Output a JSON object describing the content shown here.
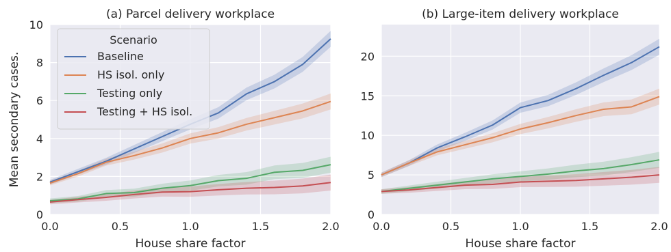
{
  "chart_data": [
    {
      "type": "line",
      "title": "(a) Parcel delivery workplace",
      "xlabel": "House share factor",
      "ylabel": "Mean secondary cases.",
      "xlim": [
        0,
        2
      ],
      "ylim": [
        0,
        10
      ],
      "xticks": [
        "0.0",
        "0.5",
        "1.0",
        "1.5",
        "2.0"
      ],
      "yticks": [
        "0",
        "2",
        "4",
        "6",
        "8",
        "10"
      ],
      "grid": true,
      "legend": {
        "title": "Scenario",
        "placement": "upper-left"
      },
      "x": [
        0.0,
        0.2,
        0.4,
        0.6,
        0.8,
        1.0,
        1.2,
        1.4,
        1.6,
        1.8,
        2.0
      ],
      "series": [
        {
          "name": "Baseline",
          "color": "#4c72b0",
          "values": [
            1.7,
            2.25,
            2.8,
            3.45,
            4.1,
            4.75,
            5.35,
            6.35,
            7.0,
            7.9,
            9.25
          ]
        },
        {
          "name": "HS isol. only",
          "color": "#dd8452",
          "values": [
            1.65,
            2.15,
            2.75,
            3.1,
            3.5,
            4.0,
            4.3,
            4.75,
            5.1,
            5.45,
            5.95
          ]
        },
        {
          "name": "Testing only",
          "color": "#55a868",
          "values": [
            0.72,
            0.82,
            1.1,
            1.15,
            1.38,
            1.52,
            1.78,
            1.9,
            2.22,
            2.32,
            2.62
          ]
        },
        {
          "name": "Testing + HS isol.",
          "color": "#c44e52",
          "values": [
            0.65,
            0.78,
            0.9,
            1.05,
            1.18,
            1.2,
            1.3,
            1.38,
            1.42,
            1.5,
            1.68
          ]
        }
      ]
    },
    {
      "type": "line",
      "title": "(b) Large-item delivery workplace",
      "xlabel": "House share factor",
      "ylabel": "",
      "xlim": [
        0,
        2
      ],
      "ylim": [
        0,
        24
      ],
      "xticks": [
        "0.0",
        "0.5",
        "1.0",
        "1.5",
        "2.0"
      ],
      "yticks": [
        "0",
        "5",
        "10",
        "15",
        "20"
      ],
      "grid": true,
      "x": [
        0.0,
        0.2,
        0.4,
        0.6,
        0.8,
        1.0,
        1.2,
        1.4,
        1.6,
        1.8,
        2.0
      ],
      "series": [
        {
          "name": "Baseline",
          "color": "#4c72b0",
          "values": [
            5.0,
            6.5,
            8.4,
            9.8,
            11.3,
            13.5,
            14.4,
            15.9,
            17.6,
            19.2,
            21.2
          ]
        },
        {
          "name": "HS isol. only",
          "color": "#dd8452",
          "values": [
            5.0,
            6.5,
            7.9,
            8.8,
            9.7,
            10.8,
            11.6,
            12.5,
            13.3,
            13.6,
            14.9
          ]
        },
        {
          "name": "Testing only",
          "color": "#55a868",
          "values": [
            2.9,
            3.3,
            3.7,
            4.1,
            4.5,
            4.8,
            5.1,
            5.5,
            5.8,
            6.3,
            6.9
          ]
        },
        {
          "name": "Testing + HS isol.",
          "color": "#c44e52",
          "values": [
            2.9,
            3.1,
            3.4,
            3.7,
            3.8,
            4.1,
            4.2,
            4.3,
            4.5,
            4.7,
            5.0
          ]
        }
      ]
    }
  ]
}
